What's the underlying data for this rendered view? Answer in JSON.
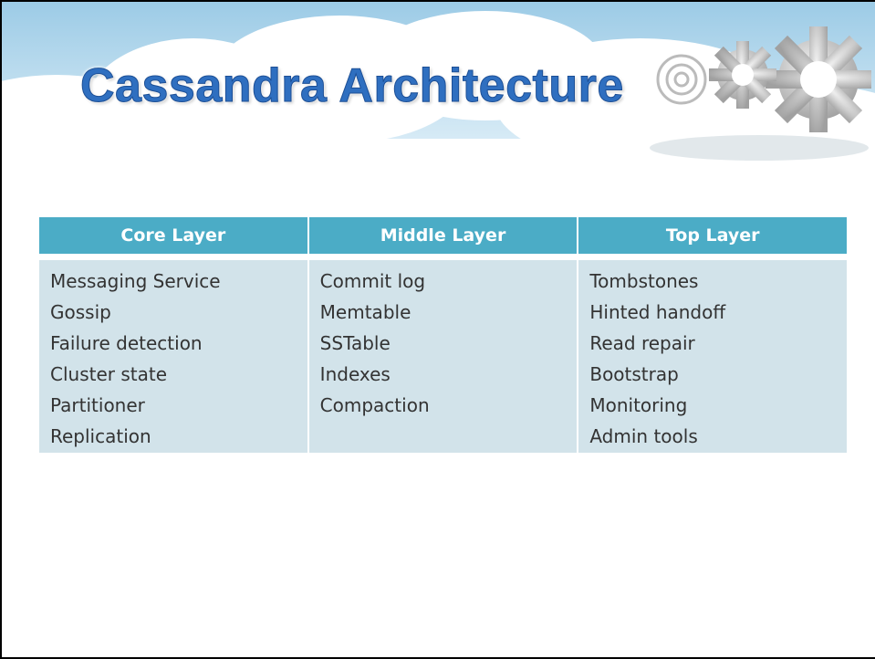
{
  "header": {
    "title": "Cassandra Architecture"
  },
  "table": {
    "headers": [
      "Core Layer",
      "Middle Layer",
      "Top Layer"
    ],
    "columns": [
      [
        "Messaging Service",
        "Gossip",
        "Failure detection",
        "Cluster state",
        "Partitioner",
        "Replication"
      ],
      [
        "Commit log",
        "Memtable",
        "SSTable",
        "Indexes",
        "Compaction"
      ],
      [
        "Tombstones",
        "Hinted handoff",
        "Read repair",
        "Bootstrap",
        "Monitoring",
        "Admin tools"
      ]
    ]
  }
}
